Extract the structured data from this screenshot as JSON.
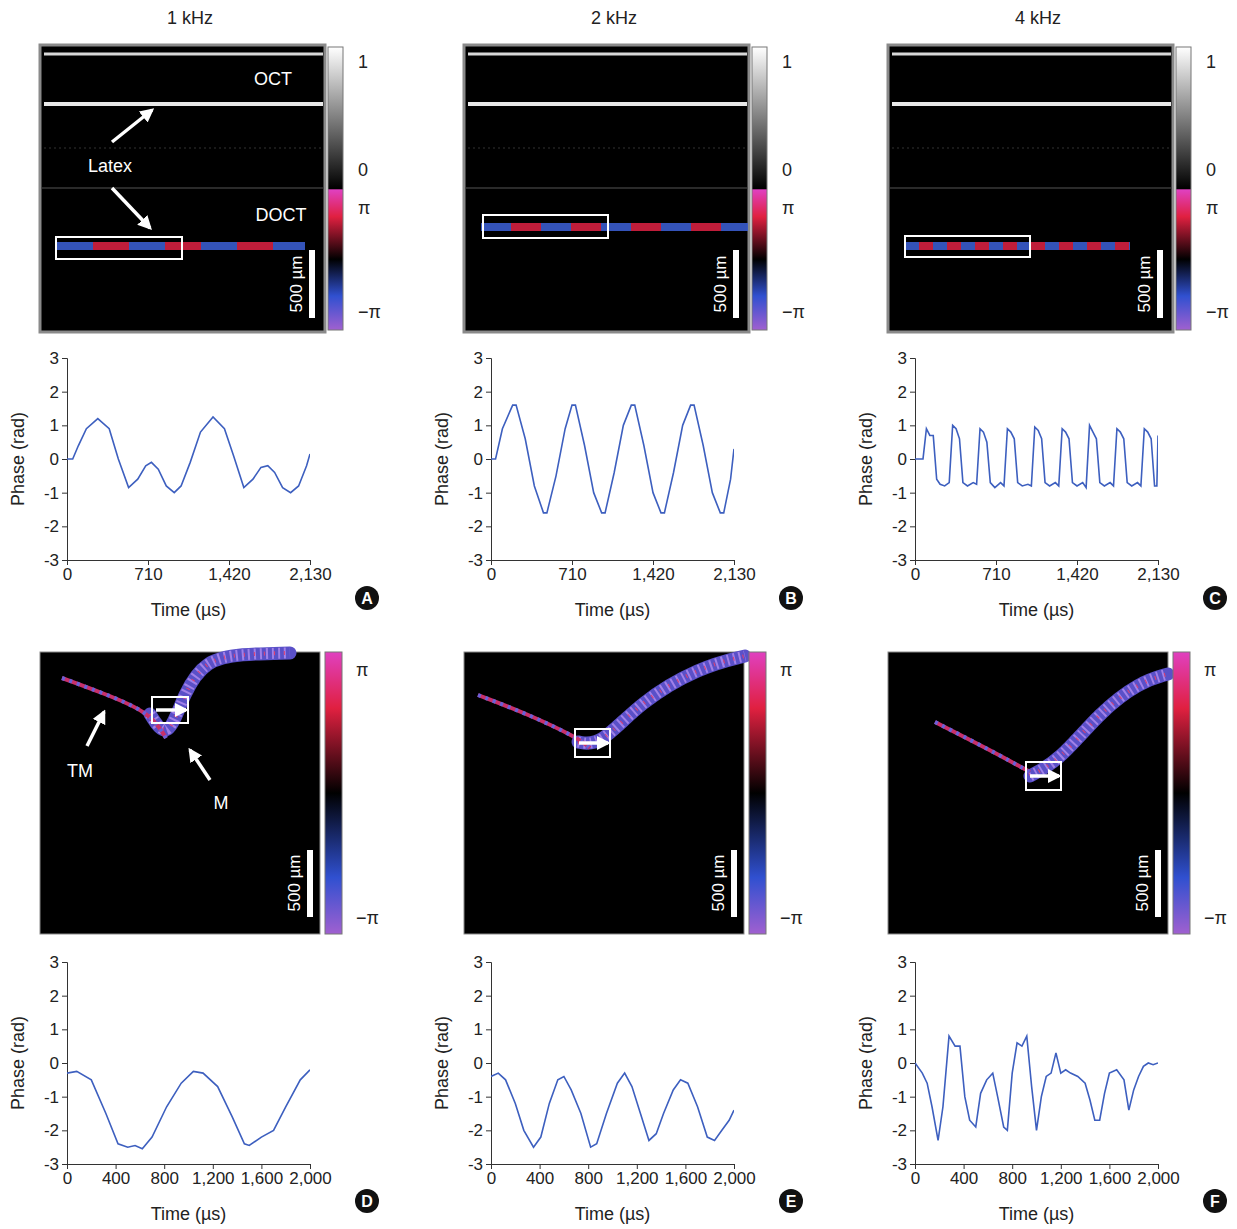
{
  "figure": {
    "column_titles": [
      "1 kHz",
      "2 kHz",
      "4 kHz"
    ],
    "images": [
      {
        "texts": {
          "oct": "OCT",
          "doct": "DOCT",
          "latex": "Latex"
        },
        "scale_bar": "500 µm",
        "colorbar": [
          "1",
          "0",
          "π",
          "−π"
        ]
      },
      {
        "scale_bar": "500 µm",
        "colorbar": [
          "1",
          "0",
          "π",
          "−π"
        ]
      },
      {
        "scale_bar": "500 µm",
        "colorbar": [
          "1",
          "0",
          "π",
          "−π"
        ]
      },
      {
        "texts": {
          "tm": "TM",
          "m": "M"
        },
        "scale_bar": "500 µm",
        "colorbar": [
          "π",
          "−π"
        ]
      },
      {
        "scale_bar": "500 µm",
        "colorbar": [
          "π",
          "−π"
        ]
      },
      {
        "scale_bar": "500 µm",
        "colorbar": [
          "π",
          "−π"
        ]
      }
    ]
  },
  "chart_data": [
    {
      "type": "line",
      "panel": "A",
      "x_label": "Time (µs)",
      "y_label": "Phase (rad)",
      "color": "#3d5fbf",
      "xlim": [
        0,
        2130
      ],
      "xticks": [
        0,
        710,
        {
          "value": 1420,
          "label": "1,420"
        },
        {
          "value": 2130,
          "label": "2,130"
        }
      ],
      "ylim": [
        -3,
        3
      ],
      "yticks": [
        -3,
        -2,
        -1,
        0,
        1,
        2,
        3
      ],
      "x": [
        0,
        50,
        100,
        170,
        270,
        370,
        450,
        540,
        620,
        690,
        740,
        800,
        870,
        940,
        1000,
        1080,
        1170,
        1280,
        1380,
        1460,
        1550,
        1630,
        1700,
        1760,
        1820,
        1890,
        1960,
        2030,
        2100,
        2130
      ],
      "values": [
        0,
        0,
        0.4,
        0.9,
        1.2,
        0.9,
        0.0,
        -0.85,
        -0.6,
        -0.2,
        -0.1,
        -0.3,
        -0.8,
        -1.0,
        -0.8,
        -0.1,
        0.8,
        1.25,
        0.9,
        0.1,
        -0.85,
        -0.6,
        -0.25,
        -0.2,
        -0.4,
        -0.85,
        -1.0,
        -0.8,
        -0.2,
        0.15
      ]
    },
    {
      "type": "line",
      "panel": "B",
      "x_label": "Time (µs)",
      "y_label": "Phase (rad)",
      "color": "#3d5fbf",
      "xlim": [
        0,
        2130
      ],
      "xticks": [
        0,
        710,
        {
          "value": 1420,
          "label": "1,420"
        },
        {
          "value": 2130,
          "label": "2,130"
        }
      ],
      "ylim": [
        -3,
        3
      ],
      "yticks": [
        -3,
        -2,
        -1,
        0,
        1,
        2,
        3
      ],
      "x": [
        0,
        40,
        100,
        190,
        220,
        300,
        380,
        460,
        490,
        570,
        650,
        710,
        740,
        820,
        900,
        970,
        1000,
        1080,
        1160,
        1230,
        1260,
        1340,
        1420,
        1490,
        1520,
        1600,
        1680,
        1750,
        1780,
        1860,
        1940,
        2010,
        2040,
        2100,
        2130
      ],
      "values": [
        0,
        0,
        0.9,
        1.6,
        1.6,
        0.6,
        -0.8,
        -1.6,
        -1.6,
        -0.5,
        0.9,
        1.6,
        1.6,
        0.4,
        -1.0,
        -1.6,
        -1.6,
        -0.4,
        1.0,
        1.6,
        1.6,
        0.4,
        -1.0,
        -1.6,
        -1.6,
        -0.4,
        1.0,
        1.6,
        1.6,
        0.4,
        -1.0,
        -1.6,
        -1.6,
        -0.6,
        0.3
      ]
    },
    {
      "type": "line",
      "panel": "C",
      "x_label": "Time (µs)",
      "y_label": "Phase (rad)",
      "color": "#3d5fbf",
      "xlim": [
        0,
        2130
      ],
      "xticks": [
        0,
        710,
        {
          "value": 1420,
          "label": "1,420"
        },
        {
          "value": 2130,
          "label": "2,130"
        }
      ],
      "ylim": [
        -3,
        3
      ],
      "yticks": [
        -3,
        -2,
        -1,
        0,
        1,
        2,
        3
      ],
      "x": [
        0,
        70,
        100,
        130,
        160,
        190,
        220,
        260,
        300,
        330,
        360,
        390,
        420,
        460,
        510,
        540,
        570,
        600,
        630,
        660,
        700,
        750,
        780,
        810,
        840,
        870,
        900,
        940,
        990,
        1020,
        1050,
        1080,
        1110,
        1140,
        1180,
        1230,
        1260,
        1290,
        1320,
        1350,
        1380,
        1420,
        1470,
        1500,
        1530,
        1560,
        1590,
        1620,
        1660,
        1710,
        1740,
        1770,
        1800,
        1830,
        1860,
        1900,
        1950,
        1980,
        2010,
        2040,
        2070,
        2100,
        2120,
        2130
      ],
      "values": [
        0,
        0,
        0.9,
        0.7,
        0.7,
        -0.6,
        -0.75,
        -0.8,
        -0.7,
        1.0,
        0.9,
        0.6,
        -0.7,
        -0.8,
        -0.7,
        -0.75,
        0.9,
        0.8,
        0.5,
        -0.7,
        -0.85,
        -0.7,
        -0.8,
        0.9,
        0.8,
        0.6,
        -0.7,
        -0.8,
        -0.75,
        -0.8,
        0.95,
        0.85,
        0.6,
        -0.7,
        -0.8,
        -0.7,
        -0.8,
        0.9,
        0.8,
        0.6,
        -0.7,
        -0.8,
        -0.7,
        -0.85,
        1.0,
        0.8,
        0.6,
        -0.7,
        -0.8,
        -0.7,
        -0.8,
        0.9,
        0.8,
        0.6,
        -0.7,
        -0.8,
        -0.7,
        -0.8,
        0.9,
        0.8,
        0.6,
        -0.8,
        -0.8,
        0.7
      ]
    },
    {
      "type": "line",
      "panel": "D",
      "x_label": "Time (µs)",
      "y_label": "Phase (rad)",
      "color": "#3d5fbf",
      "xlim": [
        0,
        2000
      ],
      "xticks": [
        0,
        400,
        800,
        {
          "value": 1200,
          "label": "1,200"
        },
        {
          "value": 1600,
          "label": "1,600"
        },
        {
          "value": 2000,
          "label": "2,000"
        }
      ],
      "ylim": [
        -3,
        3
      ],
      "yticks": [
        -3,
        -2,
        -1,
        0,
        1,
        2,
        3
      ],
      "x": [
        0,
        80,
        200,
        320,
        420,
        500,
        560,
        620,
        700,
        820,
        940,
        1040,
        1120,
        1240,
        1360,
        1460,
        1500,
        1600,
        1700,
        1800,
        1920,
        2000
      ],
      "values": [
        -0.3,
        -0.25,
        -0.5,
        -1.5,
        -2.4,
        -2.5,
        -2.45,
        -2.55,
        -2.2,
        -1.3,
        -0.6,
        -0.25,
        -0.3,
        -0.7,
        -1.6,
        -2.4,
        -2.45,
        -2.2,
        -2.0,
        -1.3,
        -0.5,
        -0.2
      ]
    },
    {
      "type": "line",
      "panel": "E",
      "x_label": "Time (µs)",
      "y_label": "Phase (rad)",
      "color": "#3d5fbf",
      "xlim": [
        0,
        2000
      ],
      "xticks": [
        0,
        400,
        800,
        {
          "value": 1200,
          "label": "1,200"
        },
        {
          "value": 1600,
          "label": "1,600"
        },
        {
          "value": 2000,
          "label": "2,000"
        }
      ],
      "ylim": [
        -3,
        3
      ],
      "yticks": [
        -3,
        -2,
        -1,
        0,
        1,
        2,
        3
      ],
      "x": [
        0,
        60,
        120,
        200,
        270,
        350,
        410,
        480,
        550,
        600,
        660,
        740,
        820,
        870,
        950,
        1040,
        1100,
        1160,
        1230,
        1300,
        1360,
        1420,
        1500,
        1560,
        1620,
        1700,
        1780,
        1840,
        1900,
        1960,
        2000
      ],
      "values": [
        -0.4,
        -0.3,
        -0.5,
        -1.2,
        -2.0,
        -2.5,
        -2.2,
        -1.2,
        -0.5,
        -0.4,
        -0.8,
        -1.5,
        -2.5,
        -2.4,
        -1.5,
        -0.6,
        -0.3,
        -0.7,
        -1.5,
        -2.3,
        -2.1,
        -1.5,
        -0.8,
        -0.5,
        -0.6,
        -1.3,
        -2.2,
        -2.3,
        -2.0,
        -1.7,
        -1.4
      ]
    },
    {
      "type": "line",
      "panel": "F",
      "x_label": "Time (µs)",
      "y_label": "Phase (rad)",
      "color": "#3d5fbf",
      "xlim": [
        0,
        2000
      ],
      "xticks": [
        0,
        400,
        800,
        {
          "value": 1200,
          "label": "1,200"
        },
        {
          "value": 1600,
          "label": "1,600"
        },
        {
          "value": 2000,
          "label": "2,000"
        }
      ],
      "ylim": [
        -3,
        3
      ],
      "yticks": [
        -3,
        -2,
        -1,
        0,
        1,
        2,
        3
      ],
      "x": [
        0,
        60,
        100,
        140,
        190,
        230,
        280,
        330,
        370,
        410,
        450,
        500,
        540,
        590,
        640,
        680,
        730,
        760,
        800,
        840,
        880,
        920,
        960,
        1000,
        1040,
        1080,
        1120,
        1160,
        1200,
        1240,
        1280,
        1340,
        1400,
        1440,
        1480,
        1520,
        1560,
        1600,
        1660,
        1720,
        1760,
        1800,
        1840,
        1880,
        1920,
        1960,
        2000
      ],
      "values": [
        0,
        -0.3,
        -0.6,
        -1.3,
        -2.3,
        -1.3,
        0.8,
        0.5,
        0.5,
        -1.0,
        -1.7,
        -1.9,
        -0.9,
        -0.5,
        -0.3,
        -1.0,
        -1.9,
        -2.0,
        -0.3,
        0.6,
        0.5,
        0.8,
        -0.7,
        -2.0,
        -1.0,
        -0.4,
        -0.3,
        0.3,
        -0.3,
        -0.2,
        -0.3,
        -0.4,
        -0.6,
        -1.1,
        -1.7,
        -1.7,
        -0.9,
        -0.3,
        -0.2,
        -0.5,
        -1.4,
        -0.8,
        -0.4,
        -0.1,
        0.0,
        -0.05,
        0.0
      ]
    }
  ]
}
